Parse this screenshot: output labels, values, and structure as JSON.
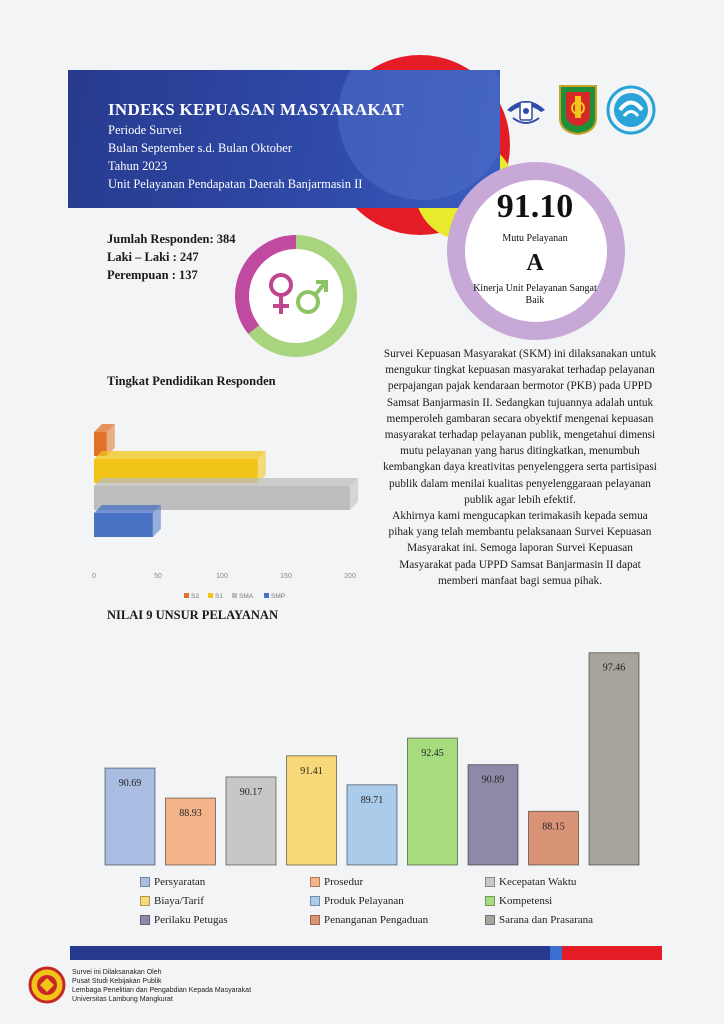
{
  "header": {
    "title": "INDEKS KEPUASAN MASYARAKAT",
    "line1": "Periode Survei",
    "line2": "Bulan September s.d. Bulan Oktober",
    "line3": "Tahun 2023",
    "line4": "Unit Pelayanan Pendapatan Daerah Banjarmasin II"
  },
  "score": {
    "value": "91.10",
    "label": "Mutu Pelayanan",
    "grade": "A",
    "grade_label": "Kinerja Unit Pelayanan Sangat Baik"
  },
  "respondents": {
    "total": "Jumlah Responden: 384",
    "male": "Laki – Laki : 247",
    "female": "Perempuan : 137"
  },
  "gender_chart": {
    "male": 247,
    "female": 137,
    "male_color": "#a7d47c",
    "female_color": "#c04aa0"
  },
  "description": {
    "para1": "Survei Kepuasan Masyarakat (SKM) ini dilaksanakan untuk mengukur tingkat kepuasan masyarakat terhadap pelayanan perpajangan pajak kendaraan bermotor (PKB) pada UPPD Samsat Banjarmasin II. Sedangkan tujuannya adalah untuk memperoleh gambaran secara obyektif mengenai kepuasan masyarakat terhadap pelayanan publik, mengetahui dimensi mutu pelayanan yang harus ditingkatkan, menumbuh kembangkan daya kreativitas penyelenggera serta partisipasi publik dalam menilai kualitas penyelenggaraan pelayanan publik agar lebih efektif.",
    "para2": "Akhirnya kami mengucapkan terimakasih kepada semua pihak yang telah membantu pelaksanaan Survei Kepuasan Masyarakat ini. Semoga laporan Survei Kepuasan Masyarakat pada UPPD Samsat Banjarmasin II dapat memberi manfaat bagi semua pihak."
  },
  "education": {
    "title": "Tingkat Pendidikan Responden"
  },
  "unsur_title": "NILAI 9 UNSUR PELAYANAN",
  "chart_data": [
    {
      "type": "bar",
      "orientation": "horizontal",
      "categories": [
        "S2",
        "S1",
        "SMA",
        "SMP"
      ],
      "values": [
        10,
        128,
        200,
        46
      ],
      "colors": [
        "#e2722a",
        "#f2c418",
        "#bdbdbd",
        "#4a72c4"
      ],
      "xlim": [
        0,
        200
      ],
      "xticks": [
        0,
        50,
        100,
        150,
        200
      ],
      "legend": "bottom"
    },
    {
      "type": "bar",
      "categories": [
        "Persyaratan",
        "Prosedur",
        "Kecepatan Waktu",
        "Biaya/Tarif",
        "Produk Pelayanan",
        "Kompetensi",
        "Perilaku Petugas",
        "Penanganan Pengaduan",
        "Sarana dan Prasarana"
      ],
      "values": [
        90.69,
        88.93,
        90.17,
        91.41,
        89.71,
        92.45,
        90.89,
        88.15,
        97.46
      ],
      "labels": [
        "90.69",
        "88.93",
        "90.17",
        "91.41",
        "89.71",
        "92.45",
        "90.89",
        "88.15",
        "97.46"
      ],
      "colors": [
        "#a9bde3",
        "#f3b48a",
        "#c6c8c6",
        "#f8d97a",
        "#aacbea",
        "#a6dc7e",
        "#8c8aa6",
        "#d99478",
        "#a8a49c"
      ],
      "legend": "bottom"
    }
  ],
  "footer": {
    "line1": "Survei ini Dilaksanakan Oleh",
    "line2": "Pusat Studi Kebijakan Publik",
    "line3": "Lembaga Penelitian dan Pengabdian Kepada Masyarakat",
    "line4": "Universitas Lambung Mangkurat"
  },
  "colors": {
    "navy": "#273a8f",
    "red": "#e31c25",
    "yellow": "#e8ea2c",
    "ring": "#c7a8d6"
  },
  "icons": [
    "police-emblem-icon",
    "provincial-emblem-icon",
    "samsat-logo-icon",
    "university-logo-icon"
  ]
}
